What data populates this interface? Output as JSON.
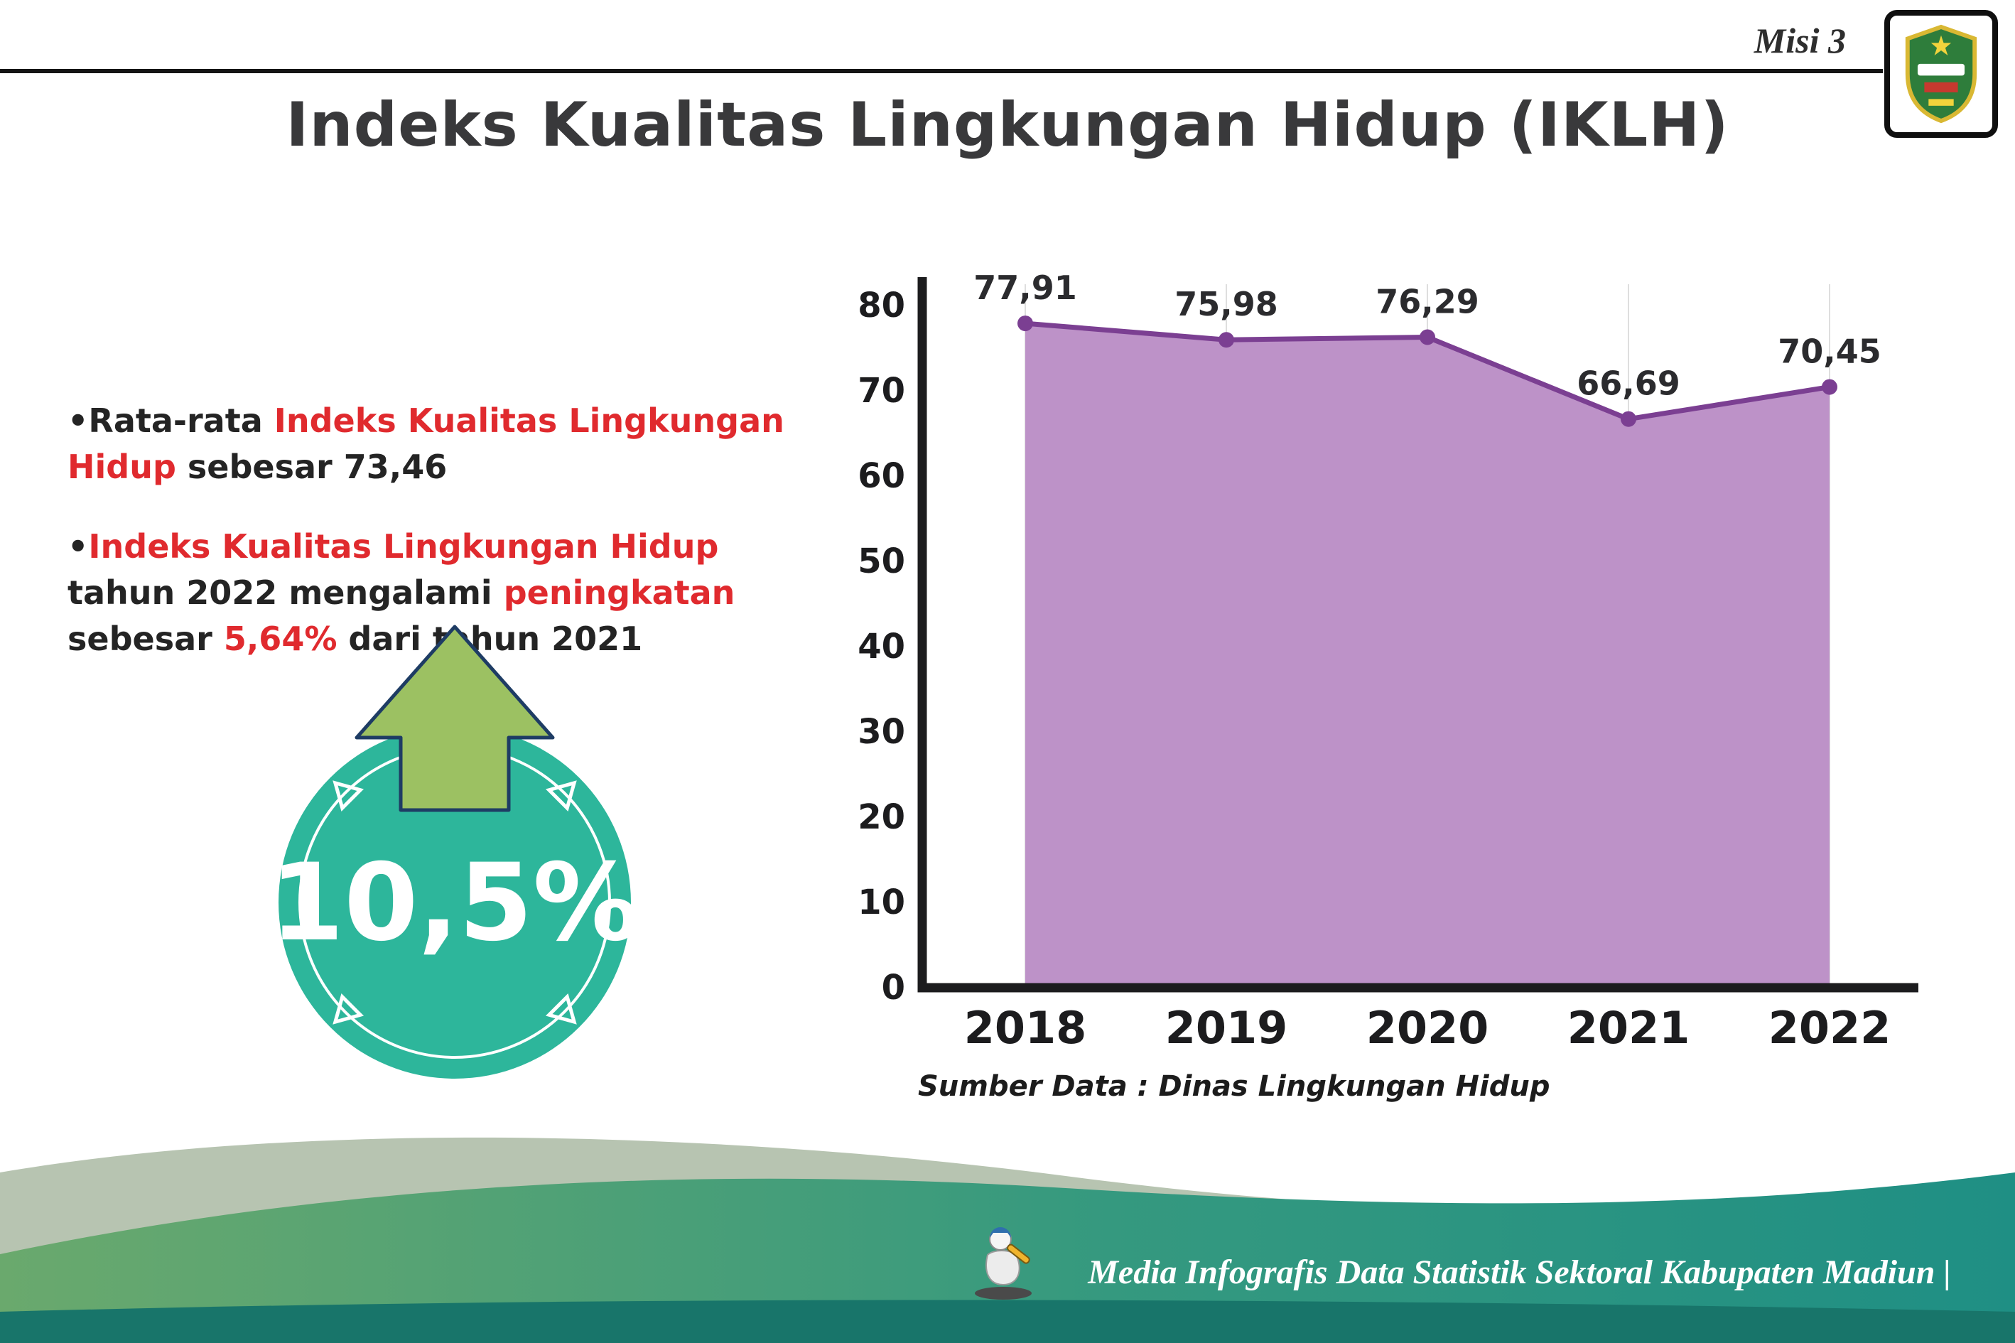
{
  "header": {
    "misi_label": "Misi 3",
    "title": "Indeks Kualitas Lingkungan Hidup (IKLH)"
  },
  "bullets": {
    "dot": "•",
    "b1": {
      "t1": "Rata-rata ",
      "t2": "Indeks Kualitas Lingkungan Hidup",
      "t3": " sebesar 73,46"
    },
    "b2": {
      "t1": "Indeks Kualitas Lingkungan Hidup",
      "t2": " tahun 2022 mengalami ",
      "t3": "peningkatan",
      "t4": " sebesar ",
      "t5": "5,64%",
      "t6": " dari tahun 2021"
    }
  },
  "badge": {
    "value": "10,5%",
    "meaning": "up-arrow increase badge",
    "circle_color": "#2db69b",
    "arrow_color": "#9cc162"
  },
  "chart_data": {
    "type": "area",
    "title": "",
    "xlabel": "",
    "ylabel": "",
    "categories": [
      "2018",
      "2019",
      "2020",
      "2021",
      "2022"
    ],
    "values": [
      77.91,
      75.98,
      76.29,
      66.69,
      70.45
    ],
    "value_labels": [
      "77,91",
      "75,98",
      "76,29",
      "66,69",
      "70,45"
    ],
    "ylim": [
      0,
      80
    ],
    "yticks": [
      0,
      10,
      20,
      30,
      40,
      50,
      60,
      70,
      80
    ],
    "grid": "vertical-light",
    "legend": "none",
    "fill_color": "#bd92c8",
    "line_color": "#7b3f92",
    "source": "Sumber Data : Dinas Lingkungan Hidup"
  },
  "footer": {
    "text": "Media Infografis Data Statistik Sektoral Kabupaten Madiun |"
  },
  "colors": {
    "accent_red": "#e02a2e",
    "title_dark": "#39393b",
    "footer_teal": "#1f8f84"
  }
}
